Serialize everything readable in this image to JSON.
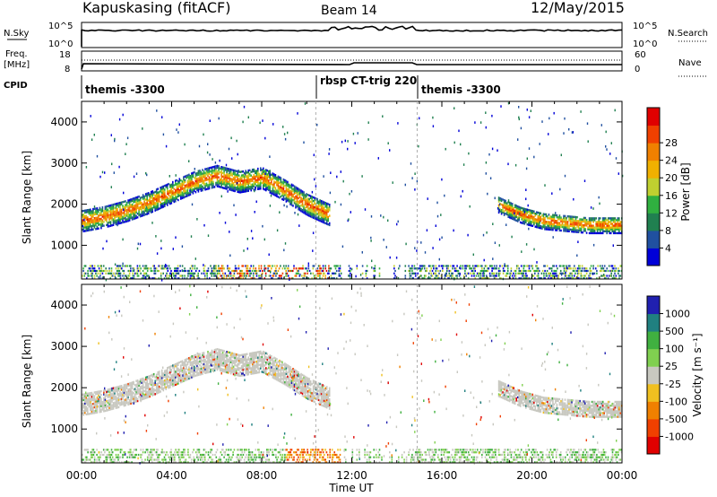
{
  "header": {
    "station": "Kapuskasing (fitACF)",
    "beam": "Beam 14",
    "date": "12/May/2015"
  },
  "chart_data": {
    "type": "heatmap",
    "x_ticks": [
      "00:00",
      "04:00",
      "08:00",
      "12:00",
      "16:00",
      "20:00",
      "00:00"
    ],
    "x_hours": [
      0,
      4,
      8,
      12,
      16,
      20,
      24
    ],
    "xlabel": "Time UT",
    "ylabel": "Slant Range [km]",
    "y_ticks": [
      1000,
      2000,
      3000,
      4000
    ],
    "ylim": [
      180,
      4500
    ],
    "cpid_segments": [
      {
        "label": "themis -3300",
        "start": 0,
        "end": 10.4
      },
      {
        "label": "rbsp CT-trig 220",
        "start": 10.4,
        "end": 14.9
      },
      {
        "label": "themis -3300",
        "start": 14.9,
        "end": 24
      }
    ],
    "panels": {
      "nsky": {
        "label": "N.Sky",
        "ticks": [
          "10^5",
          "10^0"
        ],
        "right_label": "N.Search",
        "right_ticks": [
          "10^5",
          "10^0"
        ]
      },
      "freq": {
        "label": "Freq.",
        "unit": "[MHz]",
        "ticks": [
          "18",
          "8"
        ],
        "right_label": "Nave",
        "right_ticks": [
          "60",
          "0"
        ]
      },
      "cpid": {
        "label": "CPID"
      }
    },
    "power_scale": {
      "label": "Power [dB]",
      "ticks": [
        "4",
        "8",
        "12",
        "16",
        "20",
        "24",
        "28"
      ],
      "colors": [
        "#0000d8",
        "#2050a0",
        "#208050",
        "#30b040",
        "#c0d030",
        "#f0b000",
        "#f08000",
        "#f04000",
        "#e00000"
      ]
    },
    "velocity_scale": {
      "label": "Velocity [m s⁻¹]",
      "ticks": [
        "1000",
        "500",
        "100",
        "25",
        "-25",
        "-100",
        "-500",
        "-1000"
      ],
      "colors": [
        "#2020b0",
        "#208080",
        "#40b040",
        "#80d050",
        "#c8c8c0",
        "#f0c020",
        "#f08000",
        "#f04000",
        "#e00000"
      ]
    },
    "echo_bands": [
      {
        "name": "main ionospheric band",
        "x": [
          0.0,
          1.0,
          2.0,
          3.0,
          4.0,
          5.0,
          6.0,
          7.0,
          8.0,
          9.0,
          10.0,
          11.0
        ],
        "center_km": [
          1600,
          1700,
          1850,
          2050,
          2300,
          2550,
          2700,
          2550,
          2650,
          2350,
          2000,
          1750
        ]
      },
      {
        "name": "evening band",
        "x": [
          18.5,
          19.5,
          20.5,
          21.5,
          22.5,
          23.5,
          24.0
        ],
        "center_km": [
          2000,
          1750,
          1600,
          1550,
          1500,
          1500,
          1500
        ]
      }
    ]
  }
}
